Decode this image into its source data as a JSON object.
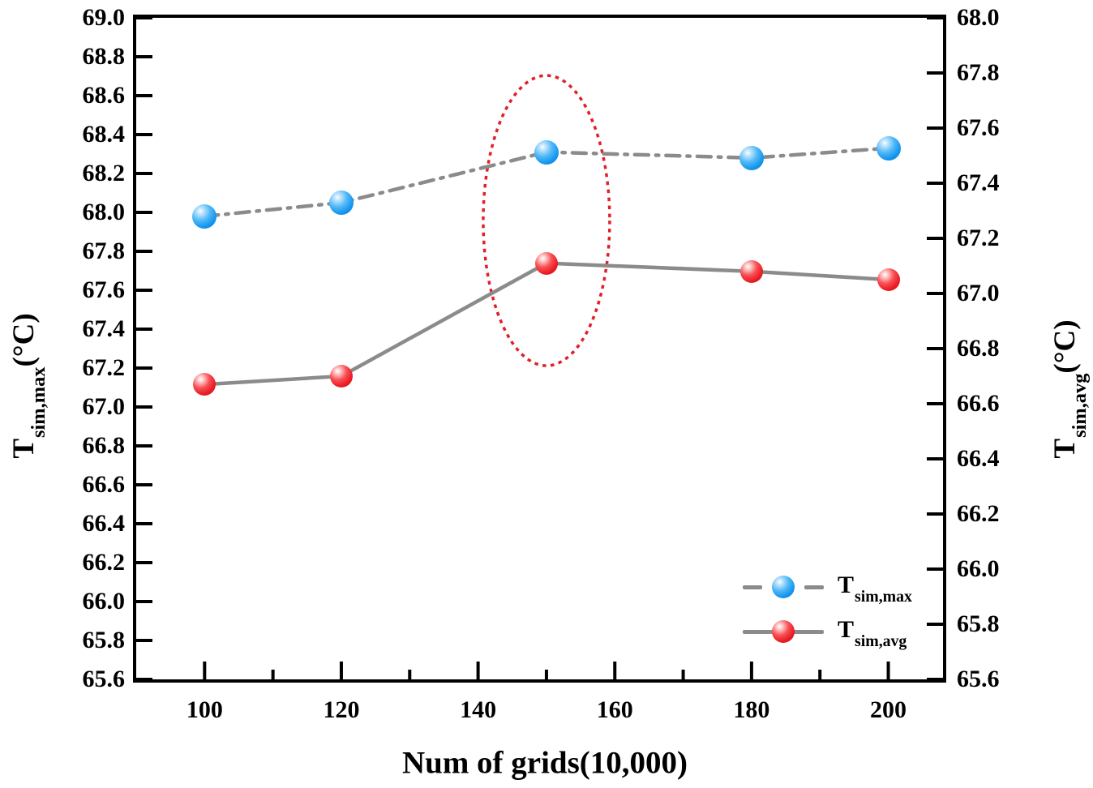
{
  "chart_data": {
    "type": "line",
    "title": "",
    "xlabel": "Num of grids(10,000)",
    "ylabel_left": "T_sim,max(°C)",
    "ylabel_right": "T_sim,avg(°C)",
    "grid": false,
    "legend_position": "lower right",
    "x_values": [
      100,
      120,
      150,
      180,
      200
    ],
    "series": [
      {
        "name": "T_sim,max",
        "axis": "left",
        "values": [
          67.98,
          68.05,
          68.31,
          68.28,
          68.33
        ],
        "marker_color": "#1496ee",
        "line_color": "#8b8b8b",
        "line_style": "dash-dot",
        "marker_size": 30
      },
      {
        "name": "T_sim,avg",
        "axis": "right",
        "values": [
          66.67,
          66.7,
          67.11,
          67.08,
          67.05
        ],
        "marker_color": "#ea1c24",
        "line_color": "#8b8b8b",
        "line_style": "solid",
        "marker_size": 28
      }
    ],
    "xlim": [
      90,
      208
    ],
    "x_ticks": [
      100,
      120,
      140,
      160,
      180,
      200
    ],
    "x_minor_ticks": [
      110,
      130,
      150,
      170,
      190
    ],
    "axes": {
      "left": {
        "lim": [
          65.6,
          69.0
        ],
        "ticks": [
          65.6,
          65.8,
          66.0,
          66.2,
          66.4,
          66.6,
          66.8,
          67.0,
          67.2,
          67.4,
          67.6,
          67.8,
          68.0,
          68.2,
          68.4,
          68.6,
          68.8,
          69.0
        ]
      },
      "right": {
        "lim": [
          65.6,
          68.0
        ],
        "ticks": [
          65.6,
          65.8,
          66.0,
          66.2,
          66.4,
          66.6,
          66.8,
          67.0,
          67.2,
          67.4,
          67.6,
          67.8,
          68.0
        ]
      }
    },
    "annotation": {
      "type": "ellipse",
      "x_center": 150,
      "color": "#df2127",
      "style": "dashed"
    }
  },
  "labels": {
    "y_left": {
      "main": "T",
      "sub": "sim,max",
      "suffix": "(°C)"
    },
    "y_right": {
      "main": "T",
      "sub": "sim,avg",
      "suffix": "(°C)"
    },
    "legend": [
      {
        "main": "T",
        "sub": "sim,max"
      },
      {
        "main": "T",
        "sub": "sim,avg"
      }
    ]
  }
}
